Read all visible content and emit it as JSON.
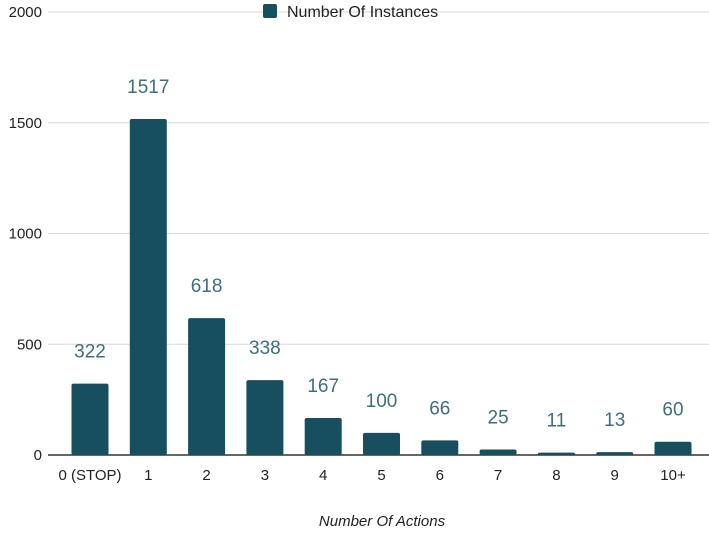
{
  "chart_data": {
    "type": "bar",
    "title": "",
    "xlabel": "Number Of Actions",
    "ylabel": "",
    "categories": [
      "0 (STOP)",
      "1",
      "2",
      "3",
      "4",
      "5",
      "6",
      "7",
      "8",
      "9",
      "10+"
    ],
    "series": [
      {
        "name": "Number Of Instances",
        "values": [
          322,
          1517,
          618,
          338,
          167,
          100,
          66,
          25,
          11,
          13,
          60
        ]
      }
    ],
    "data_labels": [
      "322",
      "1517",
      "618",
      "338",
      "167",
      "100",
      "66",
      "25",
      "11",
      "13",
      "60"
    ],
    "ylim": [
      0,
      2000
    ],
    "yticks": [
      0,
      500,
      1000,
      1500,
      2000
    ],
    "ytick_labels": [
      "0",
      "500",
      "1000",
      "1500",
      "2000"
    ],
    "grid": true,
    "legend_position": "top-center",
    "colors": {
      "bar": "#174f5e",
      "data_label": "#3f6e7c",
      "grid": "#d9d9d9",
      "baseline": "#333333"
    }
  }
}
